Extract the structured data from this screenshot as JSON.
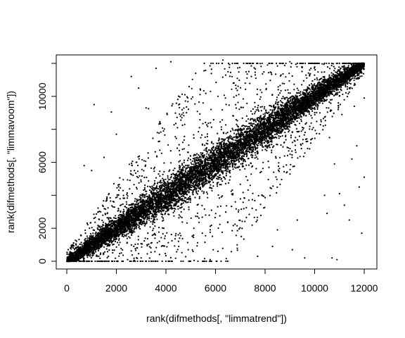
{
  "chart_data": {
    "type": "scatter",
    "title": "",
    "xlabel": "rank(difmethods[, \"limmatrend\"])",
    "ylabel": "rank(difmethods[, \"limmavoom\"])",
    "xlim": [
      0,
      12000
    ],
    "ylim": [
      0,
      12000
    ],
    "x_ticks": [
      0,
      2000,
      4000,
      6000,
      8000,
      10000,
      12000
    ],
    "y_ticks": [
      0,
      2000,
      6000,
      10000
    ],
    "x_tick_labels": [
      "0",
      "2000",
      "4000",
      "6000",
      "8000",
      "10000",
      "12000"
    ],
    "y_tick_labels": [
      "0",
      "2000",
      "6000",
      "10000"
    ],
    "marker_color": "#000000",
    "grid": false,
    "legend": "none",
    "points": [
      [
        1100,
        9500
      ],
      [
        1800,
        9050
      ],
      [
        2600,
        11200
      ],
      [
        3200,
        9300
      ],
      [
        3300,
        9250
      ],
      [
        2000,
        7700
      ],
      [
        1500,
        6300
      ],
      [
        700,
        5800
      ],
      [
        1000,
        5500
      ],
      [
        1900,
        4700
      ],
      [
        9600,
        200
      ],
      [
        10900,
        100
      ],
      [
        10700,
        200
      ],
      [
        9100,
        700
      ],
      [
        8300,
        900
      ],
      [
        7700,
        300
      ],
      [
        6100,
        600
      ],
      [
        4900,
        700
      ],
      [
        4000,
        0
      ],
      [
        10500,
        2900
      ],
      [
        11200,
        3400
      ],
      [
        11800,
        4500
      ],
      [
        10400,
        4000
      ],
      [
        11700,
        7000
      ],
      [
        11500,
        6200
      ],
      [
        11000,
        4100
      ],
      [
        4200,
        12100
      ],
      [
        3600,
        11700
      ],
      [
        6300,
        12200
      ],
      [
        6900,
        12000
      ],
      [
        5200,
        11400
      ],
      [
        7200,
        10800
      ],
      [
        5800,
        10300
      ],
      [
        2900,
        10500
      ],
      [
        8500,
        1900
      ],
      [
        9300,
        2500
      ],
      [
        3000,
        200
      ],
      [
        2200,
        500
      ],
      [
        1500,
        1200
      ],
      [
        11900,
        1700
      ],
      [
        11400,
        2500
      ],
      [
        12000,
        5100
      ],
      [
        10800,
        5900
      ],
      [
        7400,
        4600
      ],
      [
        6800,
        3600
      ],
      [
        5600,
        2800
      ],
      [
        4500,
        1600
      ],
      [
        3400,
        1100
      ],
      [
        2500,
        3100
      ],
      [
        2800,
        6000
      ],
      [
        3900,
        7900
      ],
      [
        4700,
        9000
      ],
      [
        5500,
        9600
      ],
      [
        6400,
        9900
      ],
      [
        7600,
        11300
      ],
      [
        8100,
        11900
      ],
      [
        9000,
        12100
      ],
      [
        9800,
        11600
      ],
      [
        8700,
        7600
      ],
      [
        9900,
        8000
      ],
      [
        10600,
        7500
      ],
      [
        11100,
        8900
      ],
      [
        11600,
        9400
      ],
      [
        12000,
        9900
      ]
    ],
    "dense_band": {
      "n": 12000,
      "spread": 0.085,
      "outlier_fraction": 0.14
    }
  }
}
